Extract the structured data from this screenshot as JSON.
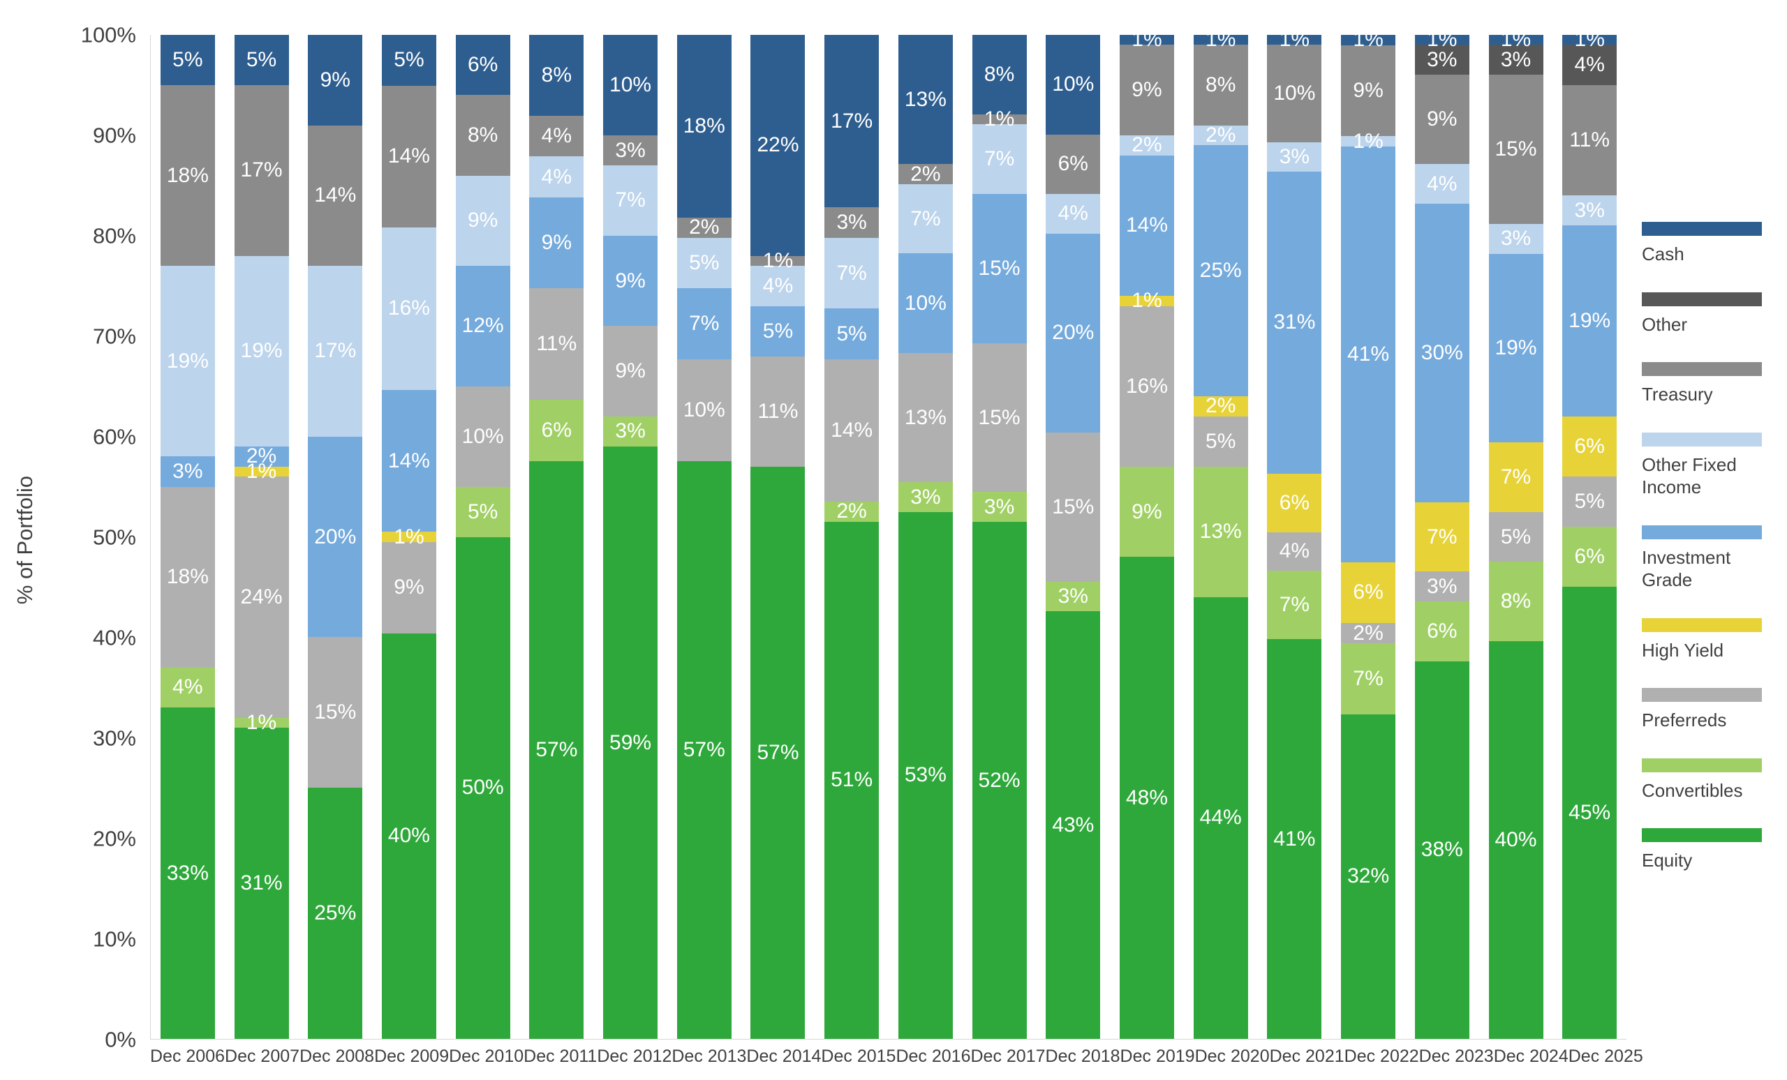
{
  "chart_data": {
    "type": "bar",
    "stacked": true,
    "title": "",
    "xlabel": "",
    "ylabel": "% of Portfolio",
    "ylim": [
      0,
      100
    ],
    "grid": false,
    "y_ticks": [
      "0%",
      "10%",
      "20%",
      "30%",
      "40%",
      "50%",
      "60%",
      "70%",
      "80%",
      "90%",
      "100%"
    ],
    "categories": [
      "Dec 2006",
      "Dec 2007",
      "Dec 2008",
      "Dec 2009",
      "Dec 2010",
      "Dec 2011",
      "Dec 2012",
      "Dec 2013",
      "Dec 2014",
      "Dec 2015",
      "Dec 2016",
      "Dec 2017",
      "Dec 2018",
      "Dec 2019",
      "Dec 2020",
      "Dec 2021",
      "Dec 2022",
      "Dec 2023",
      "Dec 2024",
      "Dec 2025"
    ],
    "series_order": "bottom-to-top",
    "series": [
      {
        "name": "Equity",
        "color": "#2fa83b",
        "values": [
          33,
          31,
          25,
          40,
          50,
          57,
          59,
          57,
          57,
          51,
          53,
          52,
          43,
          48,
          44,
          41,
          32,
          38,
          40,
          45
        ]
      },
      {
        "name": "Convertibles",
        "color": "#a0d065",
        "values": [
          4,
          1,
          0,
          0,
          5,
          6,
          3,
          0,
          0,
          2,
          3,
          3,
          3,
          9,
          13,
          7,
          7,
          6,
          8,
          6
        ]
      },
      {
        "name": "Preferreds",
        "color": "#b0b0b0",
        "values": [
          18,
          24,
          15,
          9,
          10,
          11,
          9,
          10,
          11,
          14,
          13,
          15,
          15,
          16,
          5,
          4,
          2,
          3,
          5,
          5
        ]
      },
      {
        "name": "High Yield",
        "color": "#e7d338",
        "values": [
          0,
          1,
          0,
          1,
          0,
          0,
          0,
          0,
          0,
          0,
          0,
          0,
          0,
          1,
          2,
          6,
          6,
          7,
          7,
          6
        ]
      },
      {
        "name": "Investment Grade",
        "color": "#75aadc",
        "values": [
          3,
          2,
          20,
          14,
          12,
          9,
          9,
          7,
          5,
          5,
          10,
          15,
          20,
          14,
          25,
          31,
          41,
          30,
          19,
          19
        ]
      },
      {
        "name": "Other Fixed Income",
        "color": "#bcd4ec",
        "values": [
          19,
          19,
          17,
          16,
          9,
          4,
          7,
          5,
          4,
          7,
          7,
          7,
          4,
          2,
          2,
          3,
          1,
          4,
          3,
          3
        ]
      },
      {
        "name": "Treasury",
        "color": "#8b8b8b",
        "values": [
          18,
          17,
          14,
          14,
          8,
          4,
          3,
          2,
          1,
          3,
          2,
          1,
          6,
          9,
          8,
          10,
          9,
          9,
          15,
          11
        ]
      },
      {
        "name": "Other",
        "color": "#575757",
        "values": [
          0,
          0,
          0,
          0,
          0,
          0,
          0,
          0,
          0,
          0,
          0,
          0,
          0,
          0,
          0,
          0,
          0,
          3,
          3,
          4
        ]
      },
      {
        "name": "Cash",
        "color": "#2e5e8f",
        "values": [
          5,
          5,
          9,
          5,
          6,
          8,
          10,
          18,
          22,
          17,
          13,
          8,
          10,
          1,
          1,
          1,
          1,
          1,
          1,
          1
        ]
      }
    ],
    "legend": {
      "position": "right",
      "order": [
        "Cash",
        "Other",
        "Treasury",
        "Other Fixed Income",
        "Investment Grade",
        "High Yield",
        "Preferreds",
        "Convertibles",
        "Equity"
      ]
    }
  }
}
